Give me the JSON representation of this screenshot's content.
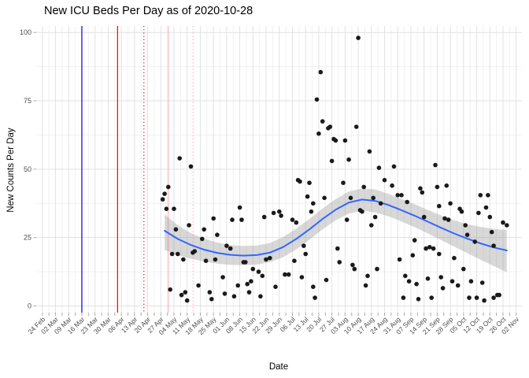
{
  "chart_data": {
    "type": "scatter",
    "title": "New ICU Beds Per Day as of 2020-10-28",
    "xlabel": "Date",
    "ylabel": "New Counts Per Day",
    "ylim": [
      0,
      100
    ],
    "y_ticks": [
      0,
      25,
      50,
      75,
      100
    ],
    "grid": "major+minor, light gray on white",
    "legend": "none",
    "x_start_date": "2020-02-24",
    "x_end_date": "2020-11-02",
    "x_tick_labels": [
      "24 Feb",
      "02 Mar",
      "09 Mar",
      "16 Mar",
      "23 Mar",
      "30 Mar",
      "06 Apr",
      "13 Apr",
      "20 Apr",
      "27 Apr",
      "04 May",
      "11 May",
      "18 May",
      "25 May",
      "01 Jun",
      "08 Jun",
      "15 Jun",
      "22 Jun",
      "29 Jun",
      "06 Jul",
      "13 Jul",
      "20 Jul",
      "27 Jul",
      "03 Aug",
      "10 Aug",
      "17 Aug",
      "24 Aug",
      "31 Aug",
      "07 Sep",
      "14 Sep",
      "21 Sep",
      "28 Sep",
      "05 Oct",
      "12 Oct",
      "19 Oct",
      "26 Oct",
      "02 Nov"
    ],
    "point_color": "#1a1a1a",
    "points": [
      [
        "2020-04-28",
        39
      ],
      [
        "2020-04-29",
        41
      ],
      [
        "2020-04-30",
        35.5
      ],
      [
        "2020-05-01",
        43.5
      ],
      [
        "2020-05-02",
        6
      ],
      [
        "2020-05-03",
        19
      ],
      [
        "2020-05-04",
        35.5
      ],
      [
        "2020-05-05",
        28
      ],
      [
        "2020-05-06",
        19
      ],
      [
        "2020-05-07",
        54
      ],
      [
        "2020-05-08",
        4
      ],
      [
        "2020-05-09",
        17
      ],
      [
        "2020-05-10",
        5
      ],
      [
        "2020-05-11",
        2
      ],
      [
        "2020-05-12",
        29.5
      ],
      [
        "2020-05-13",
        51
      ],
      [
        "2020-05-14",
        19.5
      ],
      [
        "2020-05-15",
        20
      ],
      [
        "2020-05-17",
        7.5
      ],
      [
        "2020-05-19",
        24.5
      ],
      [
        "2020-05-20",
        28
      ],
      [
        "2020-05-21",
        16.5
      ],
      [
        "2020-05-23",
        5
      ],
      [
        "2020-05-24",
        2.5
      ],
      [
        "2020-05-25",
        32
      ],
      [
        "2020-05-26",
        17
      ],
      [
        "2020-05-27",
        26
      ],
      [
        "2020-05-30",
        10.5
      ],
      [
        "2020-05-31",
        4.5
      ],
      [
        "2020-06-01",
        22
      ],
      [
        "2020-06-03",
        21
      ],
      [
        "2020-06-04",
        31.5
      ],
      [
        "2020-06-05",
        3.5
      ],
      [
        "2020-06-07",
        7.5
      ],
      [
        "2020-06-08",
        36
      ],
      [
        "2020-06-09",
        31.5
      ],
      [
        "2020-06-10",
        16
      ],
      [
        "2020-06-11",
        16
      ],
      [
        "2020-06-12",
        8
      ],
      [
        "2020-06-13",
        5
      ],
      [
        "2020-06-14",
        9
      ],
      [
        "2020-06-15",
        13.5
      ],
      [
        "2020-06-18",
        12.5
      ],
      [
        "2020-06-19",
        3.5
      ],
      [
        "2020-06-20",
        11
      ],
      [
        "2020-06-21",
        32.5
      ],
      [
        "2020-06-22",
        17
      ],
      [
        "2020-06-24",
        17.5
      ],
      [
        "2020-06-26",
        34
      ],
      [
        "2020-06-27",
        7
      ],
      [
        "2020-06-29",
        34.5
      ],
      [
        "2020-06-30",
        33
      ],
      [
        "2020-07-02",
        11.5
      ],
      [
        "2020-07-04",
        11.5
      ],
      [
        "2020-07-06",
        31.5
      ],
      [
        "2020-07-07",
        16.5
      ],
      [
        "2020-07-08",
        30.5
      ],
      [
        "2020-07-09",
        46
      ],
      [
        "2020-07-10",
        45.5
      ],
      [
        "2020-07-11",
        10.5
      ],
      [
        "2020-07-12",
        22
      ],
      [
        "2020-07-13",
        19
      ],
      [
        "2020-07-14",
        40
      ],
      [
        "2020-07-15",
        45
      ],
      [
        "2020-07-16",
        34.5
      ],
      [
        "2020-07-17",
        37.5
      ],
      [
        "2020-07-17",
        7
      ],
      [
        "2020-07-18",
        3
      ],
      [
        "2020-07-19",
        75.5
      ],
      [
        "2020-07-20",
        63
      ],
      [
        "2020-07-21",
        85.5
      ],
      [
        "2020-07-22",
        67.5
      ],
      [
        "2020-07-23",
        39.5
      ],
      [
        "2020-07-24",
        9.5
      ],
      [
        "2020-07-25",
        65
      ],
      [
        "2020-07-26",
        65.5
      ],
      [
        "2020-07-27",
        53
      ],
      [
        "2020-07-28",
        61
      ],
      [
        "2020-07-29",
        60.5
      ],
      [
        "2020-07-30",
        21
      ],
      [
        "2020-07-31",
        16
      ],
      [
        "2020-08-02",
        45
      ],
      [
        "2020-08-03",
        60.5
      ],
      [
        "2020-08-04",
        31.5
      ],
      [
        "2020-08-05",
        53.5
      ],
      [
        "2020-08-06",
        39.5
      ],
      [
        "2020-08-07",
        15
      ],
      [
        "2020-08-08",
        13.5
      ],
      [
        "2020-08-09",
        65.5
      ],
      [
        "2020-08-10",
        98
      ],
      [
        "2020-08-11",
        35
      ],
      [
        "2020-08-12",
        34.5
      ],
      [
        "2020-08-13",
        43.5
      ],
      [
        "2020-08-14",
        7.5
      ],
      [
        "2020-08-15",
        11
      ],
      [
        "2020-08-16",
        56.5
      ],
      [
        "2020-08-17",
        29.5
      ],
      [
        "2020-08-18",
        39.5
      ],
      [
        "2020-08-19",
        32.5
      ],
      [
        "2020-08-20",
        13.5
      ],
      [
        "2020-08-21",
        50.5
      ],
      [
        "2020-08-22",
        37.5
      ],
      [
        "2020-08-24",
        46
      ],
      [
        "2020-08-28",
        44
      ],
      [
        "2020-08-29",
        51
      ],
      [
        "2020-08-31",
        40.5
      ],
      [
        "2020-09-01",
        17
      ],
      [
        "2020-09-02",
        40.5
      ],
      [
        "2020-09-03",
        3
      ],
      [
        "2020-09-04",
        11
      ],
      [
        "2020-09-05",
        38
      ],
      [
        "2020-09-06",
        9
      ],
      [
        "2020-09-08",
        18.5
      ],
      [
        "2020-09-09",
        24
      ],
      [
        "2020-09-10",
        8
      ],
      [
        "2020-09-11",
        2.5
      ],
      [
        "2020-09-12",
        43
      ],
      [
        "2020-09-13",
        41.5
      ],
      [
        "2020-09-14",
        32.5
      ],
      [
        "2020-09-15",
        21
      ],
      [
        "2020-09-16",
        10
      ],
      [
        "2020-09-17",
        21.5
      ],
      [
        "2020-09-18",
        3
      ],
      [
        "2020-09-19",
        21
      ],
      [
        "2020-09-20",
        51.5
      ],
      [
        "2020-09-21",
        43.5
      ],
      [
        "2020-09-22",
        36.5
      ],
      [
        "2020-09-22",
        19
      ],
      [
        "2020-09-23",
        10.5
      ],
      [
        "2020-09-24",
        6.5
      ],
      [
        "2020-09-25",
        32
      ],
      [
        "2020-09-26",
        44
      ],
      [
        "2020-09-27",
        31.5
      ],
      [
        "2020-09-28",
        37.5
      ],
      [
        "2020-09-29",
        9
      ],
      [
        "2020-09-30",
        17.5
      ],
      [
        "2020-10-02",
        7.5
      ],
      [
        "2020-10-03",
        35.5
      ],
      [
        "2020-10-04",
        34.5
      ],
      [
        "2020-10-05",
        13.5
      ],
      [
        "2020-10-06",
        29.5
      ],
      [
        "2020-10-07",
        26
      ],
      [
        "2020-10-08",
        3
      ],
      [
        "2020-10-09",
        9
      ],
      [
        "2020-10-11",
        23.5
      ],
      [
        "2020-10-12",
        3
      ],
      [
        "2020-10-13",
        34
      ],
      [
        "2020-10-14",
        40.5
      ],
      [
        "2020-10-15",
        8.5
      ],
      [
        "2020-10-16",
        2
      ],
      [
        "2020-10-17",
        36
      ],
      [
        "2020-10-18",
        40.5
      ],
      [
        "2020-10-19",
        32.5
      ],
      [
        "2020-10-20",
        27
      ],
      [
        "2020-10-21",
        22
      ],
      [
        "2020-10-21",
        3
      ],
      [
        "2020-10-23",
        4
      ],
      [
        "2020-10-24",
        4
      ],
      [
        "2020-10-26",
        30.5
      ],
      [
        "2020-10-28",
        29.5
      ]
    ],
    "smooth_line": {
      "color": "#3366FF",
      "points": [
        [
          "2020-04-29",
          27.5
        ],
        [
          "2020-05-06",
          24.5
        ],
        [
          "2020-05-13",
          22.3
        ],
        [
          "2020-05-20",
          20.6
        ],
        [
          "2020-05-27",
          19.4
        ],
        [
          "2020-06-03",
          18.7
        ],
        [
          "2020-06-10",
          18.4
        ],
        [
          "2020-06-17",
          18.6
        ],
        [
          "2020-06-24",
          19.5
        ],
        [
          "2020-07-01",
          21.5
        ],
        [
          "2020-07-08",
          24.5
        ],
        [
          "2020-07-15",
          28
        ],
        [
          "2020-07-22",
          31.8
        ],
        [
          "2020-07-29",
          35.2
        ],
        [
          "2020-08-05",
          37.8
        ],
        [
          "2020-08-12",
          38.9
        ],
        [
          "2020-08-19",
          38.4
        ],
        [
          "2020-08-26",
          36.9
        ],
        [
          "2020-09-02",
          35
        ],
        [
          "2020-09-09",
          33
        ],
        [
          "2020-09-16",
          30.8
        ],
        [
          "2020-09-23",
          28.6
        ],
        [
          "2020-09-30",
          26.5
        ],
        [
          "2020-10-07",
          24.6
        ],
        [
          "2020-10-14",
          22.9
        ],
        [
          "2020-10-21",
          21.4
        ],
        [
          "2020-10-28",
          20.3
        ]
      ]
    },
    "ci_ribbon": {
      "color": "#999999",
      "opacity": 0.38,
      "points": [
        [
          "2020-04-29",
          20.5,
          33.5
        ],
        [
          "2020-05-06",
          18.5,
          29.5
        ],
        [
          "2020-05-13",
          17.3,
          26.6
        ],
        [
          "2020-05-20",
          16.2,
          24.6
        ],
        [
          "2020-05-27",
          15.5,
          23.2
        ],
        [
          "2020-06-03",
          15.0,
          22.2
        ],
        [
          "2020-06-10",
          14.9,
          21.9
        ],
        [
          "2020-06-17",
          15.1,
          22.1
        ],
        [
          "2020-06-24",
          16.0,
          23.0
        ],
        [
          "2020-07-01",
          17.8,
          25.2
        ],
        [
          "2020-07-08",
          20.7,
          28.3
        ],
        [
          "2020-07-15",
          24.2,
          31.8
        ],
        [
          "2020-07-22",
          28.0,
          35.6
        ],
        [
          "2020-07-29",
          31.3,
          39.1
        ],
        [
          "2020-08-05",
          33.8,
          41.8
        ],
        [
          "2020-08-12",
          34.8,
          43.0
        ],
        [
          "2020-08-19",
          34.2,
          42.6
        ],
        [
          "2020-08-26",
          32.8,
          41.0
        ],
        [
          "2020-09-02",
          30.9,
          39.1
        ],
        [
          "2020-09-09",
          28.8,
          37.2
        ],
        [
          "2020-09-16",
          26.5,
          35.1
        ],
        [
          "2020-09-23",
          24.1,
          33.1
        ],
        [
          "2020-09-30",
          21.7,
          31.3
        ],
        [
          "2020-10-07",
          19.3,
          29.9
        ],
        [
          "2020-10-14",
          16.9,
          28.9
        ],
        [
          "2020-10-21",
          14.6,
          28.2
        ],
        [
          "2020-10-28",
          12.3,
          27.8
        ]
      ]
    },
    "vlines": [
      {
        "date": "2020-03-16",
        "color": "#0000EE",
        "style": "solid",
        "name": "blue-solid-vline"
      },
      {
        "date": "2020-04-04",
        "color": "#EE0000",
        "style": "solid",
        "name": "red-solid-vline"
      },
      {
        "date": "2020-04-18",
        "color": "#EE0000",
        "style": "dotted",
        "name": "red-dotted-vline"
      },
      {
        "date": "2020-05-01",
        "color": "#FFB6C1",
        "style": "solid",
        "name": "pink-solid-vline"
      },
      {
        "date": "2020-05-14",
        "color": "#FFC0CB",
        "style": "dotted",
        "name": "pink-dotted-vline"
      }
    ]
  }
}
